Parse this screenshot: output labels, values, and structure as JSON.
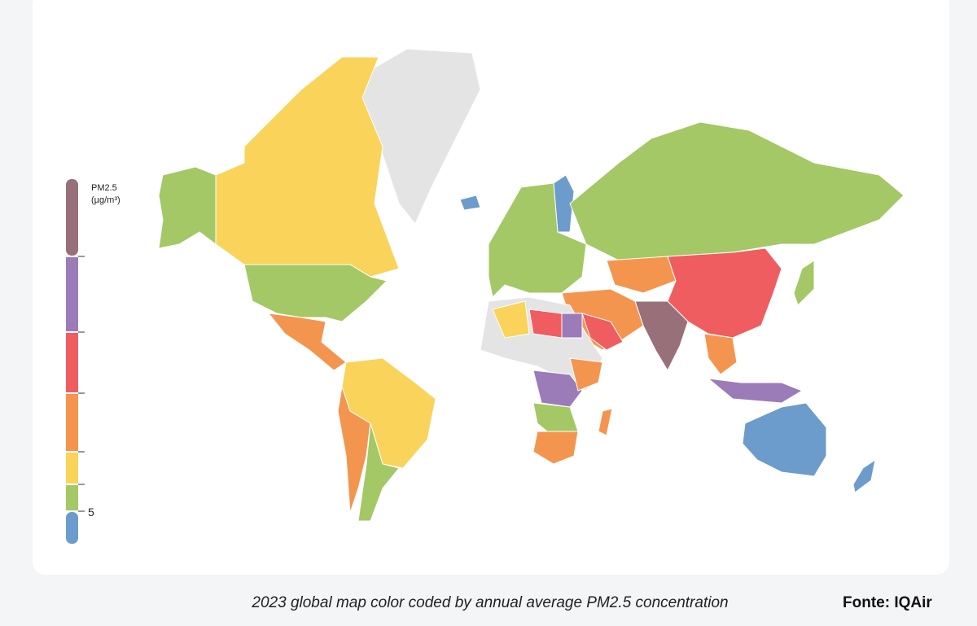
{
  "legend": {
    "title": "PM2.5",
    "unit": "(µg/m³)",
    "colors": [
      "#98707a",
      "#9b7bb8",
      "#ef5d60",
      "#f4954f",
      "#f9d35a",
      "#a3c865",
      "#6b9ccb"
    ],
    "tick": 5
  },
  "caption": "2023 global map color coded by annual average PM2.5 concentration",
  "source": "Fonte: IQAir"
}
